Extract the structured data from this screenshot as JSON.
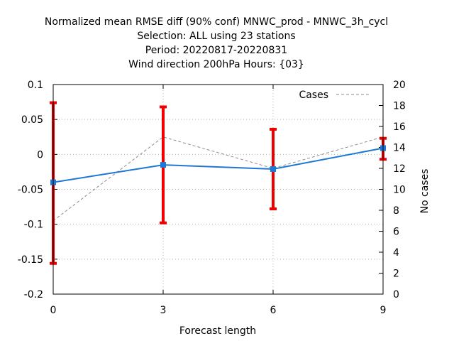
{
  "chart_data": {
    "type": "line",
    "title": [
      "Normalized mean RMSE diff (90% conf) MNWC_prod - MNWC_3h_cycl",
      "Selection: ALL using    23 stations",
      "Period: 20220817-20220831",
      "Wind direction 200hPa   Hours: {03}"
    ],
    "xlabel": "Forecast length",
    "ylabel": "",
    "y2label": "No cases",
    "x": [
      0,
      3,
      6,
      9
    ],
    "xticks": [
      "0",
      "3",
      "6",
      "9"
    ],
    "xlim": [
      0,
      9
    ],
    "ylim": [
      -0.2,
      0.1
    ],
    "yticks": [
      "0.1",
      "0.05",
      "0",
      "-0.05",
      "-0.1",
      "-0.15",
      "-0.2"
    ],
    "y2lim": [
      0,
      20
    ],
    "y2ticks": [
      "20",
      "18",
      "16",
      "14",
      "12",
      "10",
      "8",
      "6",
      "4",
      "2",
      "0"
    ],
    "grid": true,
    "legend_position": "top-right",
    "series": [
      {
        "name": "",
        "axis": "left",
        "values": [
          -0.04,
          -0.015,
          -0.021,
          0.009
        ],
        "error_low": [
          -0.156,
          -0.098,
          -0.078,
          -0.007
        ],
        "error_high": [
          0.074,
          0.068,
          0.036,
          0.023
        ],
        "color": "#1f77d4",
        "error_color": "#ee0000"
      },
      {
        "name": "Cases",
        "axis": "right",
        "values": [
          7,
          15,
          12,
          15
        ],
        "color": "#8c8c8c",
        "dashed": true
      }
    ]
  }
}
